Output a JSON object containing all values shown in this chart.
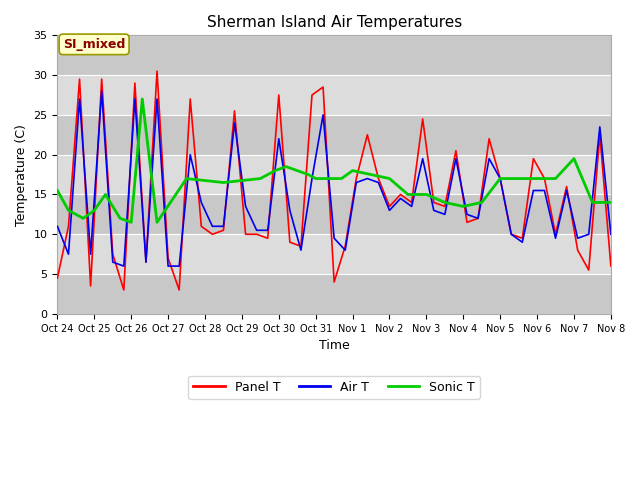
{
  "title": "Sherman Island Air Temperatures",
  "xlabel": "Time",
  "ylabel": "Temperature (C)",
  "ylim": [
    0,
    35
  ],
  "xlim": [
    0,
    15
  ],
  "tick_labels": [
    "Oct 24",
    "Oct 25",
    "Oct 26",
    "Oct 27",
    "Oct 28",
    "Oct 29",
    "Oct 30",
    "Oct 31",
    "Nov 1",
    "Nov 2",
    "Nov 3",
    "Nov 4",
    "Nov 5",
    "Nov 6",
    "Nov 7",
    "Nov 8"
  ],
  "annotation_text": "SI_mixed",
  "annotation_color": "#8B0000",
  "annotation_bg": "#FFFFCC",
  "annotation_edge": "#999900",
  "fig_bg": "#FFFFFF",
  "plot_bg": "#DCDCDC",
  "band_light": "#E8E8E8",
  "band_dark": "#D0D0D0",
  "panel_t_color": "#FF0000",
  "air_t_color": "#0000EE",
  "sonic_t_color": "#00CC00",
  "line_width": 1.2,
  "panel_t": [
    4.5,
    11,
    29.5,
    3.5,
    29.5,
    7.5,
    3.0,
    29.0,
    6.5,
    30.5,
    7.0,
    3.0,
    27.0,
    11.0,
    10.0,
    10.5,
    25.5,
    10.0,
    10.0,
    9.5,
    27.5,
    9.0,
    8.5,
    27.5,
    28.5,
    4.0,
    8.5,
    17.0,
    22.5,
    17.0,
    13.5,
    15.0,
    14.0,
    24.5,
    14.0,
    13.5,
    20.5,
    11.5,
    12.0,
    22.0,
    17.0,
    10.0,
    9.5,
    19.5,
    17.0,
    10.0,
    16.0,
    8.0,
    5.5,
    22.5,
    6.0
  ],
  "air_t": [
    11.0,
    7.5,
    27.0,
    7.5,
    28.0,
    6.5,
    6.0,
    27.0,
    6.5,
    27.0,
    6.0,
    6.0,
    20.0,
    14.0,
    11.0,
    11.0,
    24.0,
    13.5,
    10.5,
    10.5,
    22.0,
    13.0,
    8.0,
    17.0,
    25.0,
    9.5,
    8.0,
    16.5,
    17.0,
    16.5,
    13.0,
    14.5,
    13.5,
    19.5,
    13.0,
    12.5,
    19.5,
    12.5,
    12.0,
    19.5,
    17.0,
    10.0,
    9.0,
    15.5,
    15.5,
    9.5,
    15.5,
    9.5,
    10.0,
    23.5,
    10.0
  ],
  "sonic_t_x": [
    0.0,
    0.3,
    0.7,
    1.0,
    1.3,
    1.7,
    2.0,
    2.3,
    2.7,
    3.5,
    4.5,
    5.5,
    5.9,
    6.2,
    6.5,
    6.8,
    7.0,
    7.3,
    7.7,
    8.0,
    8.5,
    9.0,
    9.5,
    10.0,
    10.5,
    11.0,
    11.5,
    12.0,
    12.5,
    13.0,
    13.5,
    14.0,
    14.5,
    15.0
  ],
  "sonic_t_y": [
    15.5,
    13.0,
    12.0,
    13.0,
    15.0,
    12.0,
    11.5,
    27.0,
    11.5,
    17.0,
    16.5,
    17.0,
    18.0,
    18.5,
    18.0,
    17.5,
    17.0,
    17.0,
    17.0,
    18.0,
    17.5,
    17.0,
    15.0,
    15.0,
    14.0,
    13.5,
    14.0,
    17.0,
    17.0,
    17.0,
    17.0,
    19.5,
    14.0,
    14.0
  ],
  "band_ranges": [
    [
      0,
      5
    ],
    [
      10,
      15
    ],
    [
      20,
      25
    ],
    [
      30,
      35
    ]
  ],
  "band_color": "#C8C8C8"
}
